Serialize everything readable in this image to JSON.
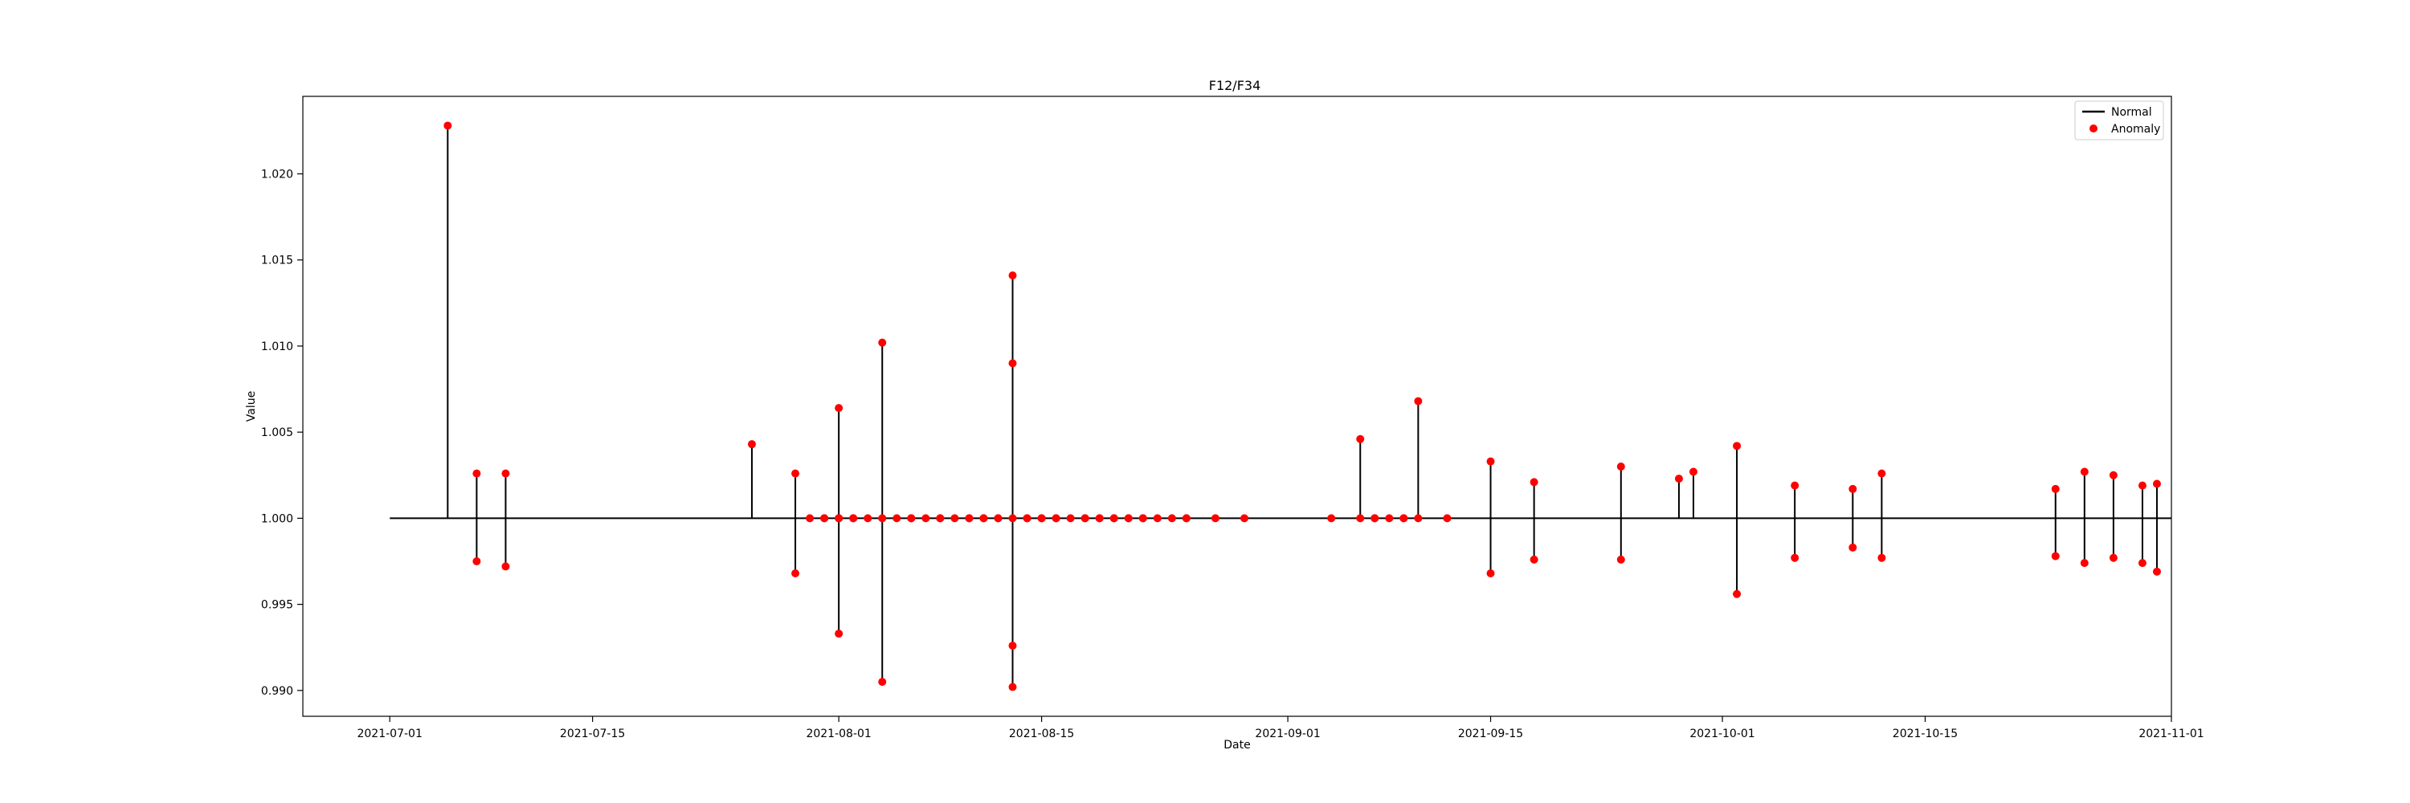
{
  "chart_data": {
    "type": "line",
    "title": "F12/F34",
    "xlabel": "Date",
    "ylabel": "Value",
    "x_axis": "date",
    "xlim": [
      "2021-06-25",
      "2021-11-01"
    ],
    "ylim": [
      0.9885,
      1.0245
    ],
    "xticks": [
      "2021-07-01",
      "2021-07-15",
      "2021-08-01",
      "2021-08-15",
      "2021-09-01",
      "2021-09-15",
      "2021-10-01",
      "2021-10-15",
      "2021-11-01"
    ],
    "yticks": [
      0.99,
      0.995,
      1.0,
      1.005,
      1.01,
      1.015,
      1.02
    ],
    "ytick_labels": [
      "0.990",
      "0.995",
      "1.000",
      "1.005",
      "1.010",
      "1.015",
      "1.020"
    ],
    "grid": false,
    "legend_position": "top-right",
    "colors": {
      "normal": "#000000",
      "anomaly": "#ff0000"
    },
    "series": [
      {
        "name": "Normal",
        "style": "line",
        "points": [
          [
            "2021-07-01",
            1.0
          ],
          [
            "2021-07-05",
            1.0
          ],
          [
            "2021-07-05",
            1.0228
          ],
          [
            "2021-07-05",
            1.0
          ],
          [
            "2021-07-07",
            1.0
          ],
          [
            "2021-07-07",
            1.0026
          ],
          [
            "2021-07-07",
            0.9975
          ],
          [
            "2021-07-07",
            1.0
          ],
          [
            "2021-07-09",
            1.0
          ],
          [
            "2021-07-09",
            1.0026
          ],
          [
            "2021-07-09",
            0.9972
          ],
          [
            "2021-07-09",
            1.0
          ],
          [
            "2021-07-26",
            1.0
          ],
          [
            "2021-07-26",
            1.0043
          ],
          [
            "2021-07-26",
            1.0
          ],
          [
            "2021-07-29",
            1.0
          ],
          [
            "2021-07-29",
            1.0026
          ],
          [
            "2021-07-29",
            0.9968
          ],
          [
            "2021-07-29",
            1.0
          ],
          [
            "2021-08-01",
            1.0
          ],
          [
            "2021-08-01",
            1.0064
          ],
          [
            "2021-08-01",
            0.9933
          ],
          [
            "2021-08-01",
            1.0
          ],
          [
            "2021-08-04",
            1.0
          ],
          [
            "2021-08-04",
            1.0102
          ],
          [
            "2021-08-04",
            0.9905
          ],
          [
            "2021-08-04",
            1.0
          ],
          [
            "2021-08-13",
            1.0
          ],
          [
            "2021-08-13",
            1.0141
          ],
          [
            "2021-08-13",
            0.9902
          ],
          [
            "2021-08-13",
            1.0
          ],
          [
            "2021-08-13",
            1.009
          ],
          [
            "2021-08-13",
            0.9926
          ],
          [
            "2021-08-13",
            1.0
          ],
          [
            "2021-09-06",
            1.0
          ],
          [
            "2021-09-06",
            1.0046
          ],
          [
            "2021-09-06",
            1.0
          ],
          [
            "2021-09-10",
            1.0
          ],
          [
            "2021-09-10",
            1.0068
          ],
          [
            "2021-09-10",
            1.0
          ],
          [
            "2021-09-15",
            1.0
          ],
          [
            "2021-09-15",
            1.0033
          ],
          [
            "2021-09-15",
            0.9968
          ],
          [
            "2021-09-15",
            1.0
          ],
          [
            "2021-09-18",
            1.0
          ],
          [
            "2021-09-18",
            1.0021
          ],
          [
            "2021-09-18",
            0.9976
          ],
          [
            "2021-09-18",
            1.0
          ],
          [
            "2021-09-24",
            1.0
          ],
          [
            "2021-09-24",
            1.003
          ],
          [
            "2021-09-24",
            0.9976
          ],
          [
            "2021-09-24",
            1.0
          ],
          [
            "2021-09-28",
            1.0
          ],
          [
            "2021-09-28",
            1.0023
          ],
          [
            "2021-09-28",
            1.0
          ],
          [
            "2021-09-29",
            1.0
          ],
          [
            "2021-09-29",
            1.0027
          ],
          [
            "2021-09-29",
            1.0
          ],
          [
            "2021-10-02",
            1.0
          ],
          [
            "2021-10-02",
            1.0042
          ],
          [
            "2021-10-02",
            0.9956
          ],
          [
            "2021-10-02",
            1.0
          ],
          [
            "2021-10-06",
            1.0
          ],
          [
            "2021-10-06",
            1.0019
          ],
          [
            "2021-10-06",
            0.9977
          ],
          [
            "2021-10-06",
            1.0
          ],
          [
            "2021-10-10",
            1.0
          ],
          [
            "2021-10-10",
            1.0017
          ],
          [
            "2021-10-10",
            0.9983
          ],
          [
            "2021-10-10",
            1.0
          ],
          [
            "2021-10-12",
            1.0
          ],
          [
            "2021-10-12",
            1.0026
          ],
          [
            "2021-10-12",
            0.9977
          ],
          [
            "2021-10-12",
            1.0
          ],
          [
            "2021-10-24",
            1.0
          ],
          [
            "2021-10-24",
            1.0017
          ],
          [
            "2021-10-24",
            0.9978
          ],
          [
            "2021-10-24",
            1.0
          ],
          [
            "2021-10-26",
            1.0
          ],
          [
            "2021-10-26",
            1.0027
          ],
          [
            "2021-10-26",
            0.9974
          ],
          [
            "2021-10-26",
            1.0
          ],
          [
            "2021-10-28",
            1.0
          ],
          [
            "2021-10-28",
            1.0025
          ],
          [
            "2021-10-28",
            0.9977
          ],
          [
            "2021-10-28",
            1.0
          ],
          [
            "2021-10-30",
            1.0
          ],
          [
            "2021-10-30",
            1.0019
          ],
          [
            "2021-10-30",
            0.9974
          ],
          [
            "2021-10-30",
            1.0
          ],
          [
            "2021-10-31",
            1.0
          ],
          [
            "2021-10-31",
            1.002
          ],
          [
            "2021-10-31",
            0.9969
          ],
          [
            "2021-10-31",
            1.0
          ],
          [
            "2021-11-01",
            1.0
          ]
        ]
      },
      {
        "name": "Anomaly",
        "style": "scatter",
        "points": [
          [
            "2021-07-05",
            1.0228
          ],
          [
            "2021-07-07",
            1.0026
          ],
          [
            "2021-07-07",
            0.9975
          ],
          [
            "2021-07-09",
            1.0026
          ],
          [
            "2021-07-09",
            0.9972
          ],
          [
            "2021-07-26",
            1.0043
          ],
          [
            "2021-07-29",
            1.0026
          ],
          [
            "2021-07-29",
            0.9968
          ],
          [
            "2021-07-30",
            1.0
          ],
          [
            "2021-07-31",
            1.0
          ],
          [
            "2021-07-31",
            1.0
          ],
          [
            "2021-08-01",
            1.0
          ],
          [
            "2021-08-01",
            1.0
          ],
          [
            "2021-08-01",
            1.0064
          ],
          [
            "2021-08-01",
            0.9933
          ],
          [
            "2021-08-01",
            1.0
          ],
          [
            "2021-08-02",
            1.0
          ],
          [
            "2021-08-02",
            1.0
          ],
          [
            "2021-08-03",
            1.0
          ],
          [
            "2021-08-04",
            1.0102
          ],
          [
            "2021-08-04",
            0.9905
          ],
          [
            "2021-08-04",
            1.0
          ],
          [
            "2021-08-05",
            1.0
          ],
          [
            "2021-08-06",
            1.0
          ],
          [
            "2021-08-06",
            1.0
          ],
          [
            "2021-08-07",
            1.0
          ],
          [
            "2021-08-08",
            1.0
          ],
          [
            "2021-08-08",
            1.0
          ],
          [
            "2021-08-09",
            1.0
          ],
          [
            "2021-08-10",
            1.0
          ],
          [
            "2021-08-10",
            1.0
          ],
          [
            "2021-08-11",
            1.0
          ],
          [
            "2021-08-11",
            1.0
          ],
          [
            "2021-08-12",
            1.0
          ],
          [
            "2021-08-12",
            1.0
          ],
          [
            "2021-08-13",
            1.0141
          ],
          [
            "2021-08-13",
            0.9902
          ],
          [
            "2021-08-13",
            1.009
          ],
          [
            "2021-08-13",
            0.9926
          ],
          [
            "2021-08-13",
            1.0
          ],
          [
            "2021-08-14",
            1.0
          ],
          [
            "2021-08-14",
            1.0
          ],
          [
            "2021-08-15",
            1.0
          ],
          [
            "2021-08-15",
            1.0
          ],
          [
            "2021-08-16",
            1.0
          ],
          [
            "2021-08-16",
            1.0
          ],
          [
            "2021-08-17",
            1.0
          ],
          [
            "2021-08-18",
            1.0
          ],
          [
            "2021-08-18",
            1.0
          ],
          [
            "2021-08-19",
            1.0
          ],
          [
            "2021-08-19",
            1.0
          ],
          [
            "2021-08-20",
            1.0
          ],
          [
            "2021-08-20",
            1.0
          ],
          [
            "2021-08-21",
            1.0
          ],
          [
            "2021-08-21",
            1.0
          ],
          [
            "2021-08-22",
            1.0
          ],
          [
            "2021-08-22",
            1.0
          ],
          [
            "2021-08-23",
            1.0
          ],
          [
            "2021-08-24",
            1.0
          ],
          [
            "2021-08-25",
            1.0
          ],
          [
            "2021-08-25",
            1.0
          ],
          [
            "2021-08-27",
            1.0
          ],
          [
            "2021-08-29",
            1.0
          ],
          [
            "2021-09-04",
            1.0
          ],
          [
            "2021-09-06",
            1.0
          ],
          [
            "2021-09-06",
            1.0046
          ],
          [
            "2021-09-07",
            1.0
          ],
          [
            "2021-09-07",
            1.0
          ],
          [
            "2021-09-08",
            1.0
          ],
          [
            "2021-09-09",
            1.0
          ],
          [
            "2021-09-09",
            1.0
          ],
          [
            "2021-09-10",
            1.0068
          ],
          [
            "2021-09-10",
            1.0
          ],
          [
            "2021-09-12",
            1.0
          ],
          [
            "2021-09-15",
            1.0033
          ],
          [
            "2021-09-15",
            0.9968
          ],
          [
            "2021-09-18",
            1.0021
          ],
          [
            "2021-09-18",
            0.9976
          ],
          [
            "2021-09-24",
            1.003
          ],
          [
            "2021-09-24",
            0.9976
          ],
          [
            "2021-09-28",
            1.0023
          ],
          [
            "2021-09-29",
            1.0027
          ],
          [
            "2021-10-02",
            1.0042
          ],
          [
            "2021-10-02",
            0.9956
          ],
          [
            "2021-10-06",
            1.0019
          ],
          [
            "2021-10-06",
            0.9977
          ],
          [
            "2021-10-10",
            1.0017
          ],
          [
            "2021-10-10",
            0.9983
          ],
          [
            "2021-10-12",
            1.0026
          ],
          [
            "2021-10-12",
            0.9977
          ],
          [
            "2021-10-24",
            1.0017
          ],
          [
            "2021-10-24",
            0.9978
          ],
          [
            "2021-10-26",
            1.0027
          ],
          [
            "2021-10-26",
            0.9974
          ],
          [
            "2021-10-28",
            1.0025
          ],
          [
            "2021-10-28",
            0.9977
          ],
          [
            "2021-10-30",
            1.0019
          ],
          [
            "2021-10-30",
            0.9974
          ],
          [
            "2021-10-31",
            1.002
          ],
          [
            "2021-10-31",
            0.9969
          ]
        ]
      }
    ]
  }
}
